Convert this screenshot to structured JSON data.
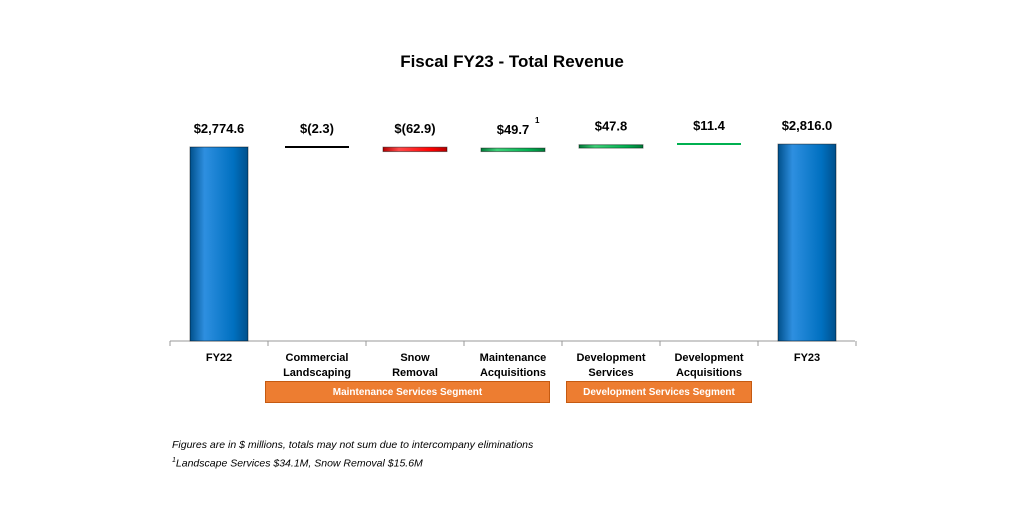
{
  "colors": {
    "total": "#0070c0",
    "increase": "#00b050",
    "decrease": "#ff0000",
    "segment": "#ed7d31"
  },
  "chart_data": {
    "type": "bar",
    "title": "Fiscal FY23 - Total Revenue",
    "categories": [
      [
        "FY22"
      ],
      [
        "Commercial",
        "Landscaping"
      ],
      [
        "Snow",
        "Removal"
      ],
      [
        "Maintenance",
        "Acquisitions"
      ],
      [
        "Development",
        "Services"
      ],
      [
        "Development",
        "Acquisitions"
      ],
      [
        "FY23"
      ]
    ],
    "values": [
      2774.6,
      -2.3,
      -62.9,
      49.7,
      47.8,
      11.4,
      2816.0
    ],
    "kinds": [
      "total",
      "change",
      "change",
      "change",
      "change",
      "change",
      "total"
    ],
    "labels": [
      "$2,774.6",
      "$(2.3)",
      "$(62.9)",
      "$49.7",
      "$47.8",
      "$11.4",
      "$2,816.0"
    ],
    "label_superscripts": [
      "",
      "",
      "",
      "1",
      "",
      "",
      ""
    ],
    "unit": "$ millions",
    "grid": false,
    "legend": "none"
  },
  "segments": [
    {
      "label": "Maintenance Services Segment"
    },
    {
      "label": "Development Services Segment"
    }
  ],
  "footnotes": {
    "line1": "Figures are in $ millions, totals may not sum due to intercompany eliminations",
    "line2_sup": "1",
    "line2": "Landscape Services $34.1M, Snow Removal $15.6M"
  }
}
